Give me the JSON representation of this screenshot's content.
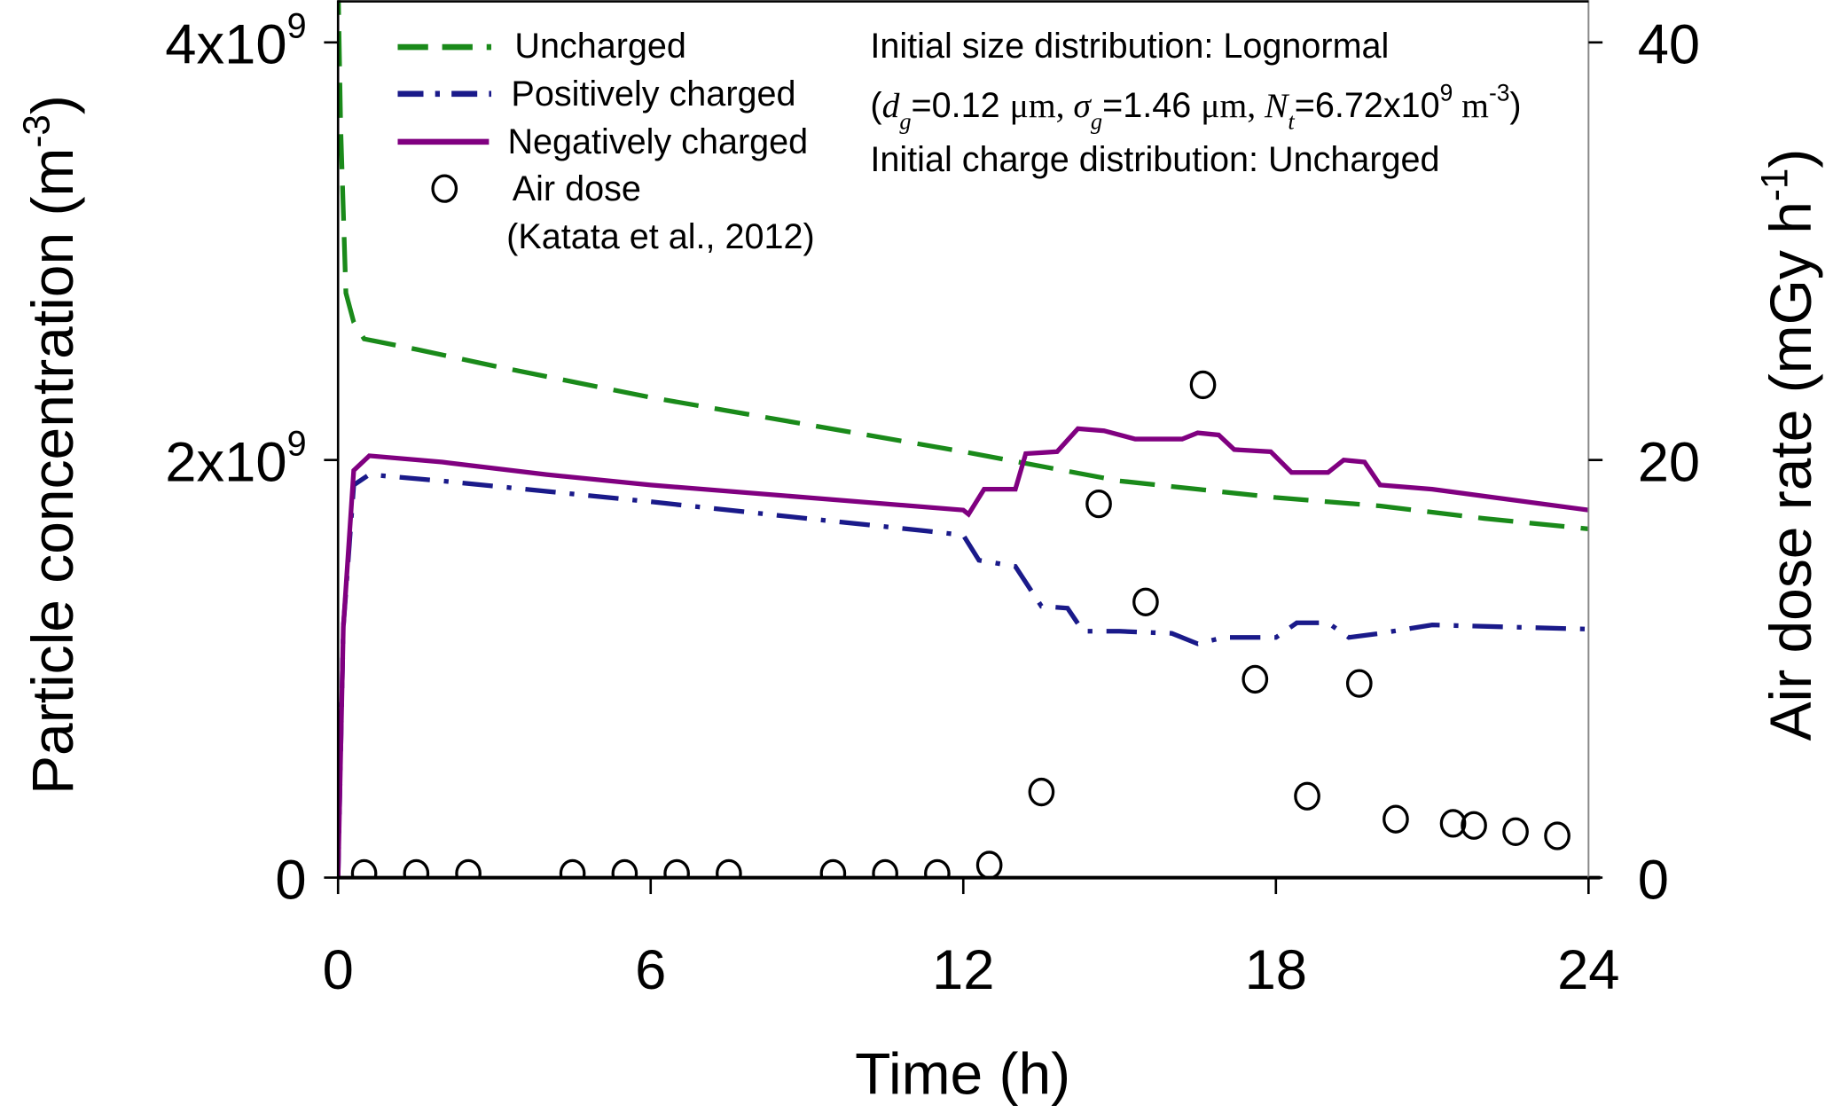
{
  "chart_data": {
    "type": "line",
    "xlabel": "Time (h)",
    "ylabel_left": "Particle concentration (m",
    "ylabel_left_sup": "-3",
    "ylabel_left_end": ")",
    "ylabel_right": "Air dose rate (mGy h",
    "ylabel_right_sup": "-1",
    "ylabel_right_end": ")",
    "xlim": [
      0,
      24
    ],
    "ylim_left": [
      0,
      4000000000.0
    ],
    "ylim_right": [
      0,
      40
    ],
    "x_ticks": [
      0,
      6,
      12,
      18,
      24
    ],
    "x_tick_labels": [
      "0",
      "6",
      "12",
      "18",
      "24"
    ],
    "y_left_ticks": [
      {
        "value": 0,
        "base": "0",
        "exp": ""
      },
      {
        "value": 2000000000.0,
        "base": "2x10",
        "exp": "9"
      },
      {
        "value": 4000000000.0,
        "base": "4x10",
        "exp": "9"
      }
    ],
    "y_right_ticks": [
      {
        "value": 0,
        "label": "0"
      },
      {
        "value": 20,
        "label": "20"
      },
      {
        "value": 40,
        "label": "40"
      }
    ],
    "legend_position": "top-left",
    "series": [
      {
        "name": "Uncharged",
        "color": "#1a8a1a",
        "style": "dash",
        "axis": "left",
        "x": [
          0,
          0.05,
          0.15,
          0.3,
          0.5,
          1.5,
          3,
          6,
          9,
          12,
          13.5,
          15,
          16.5,
          18,
          20,
          22,
          24
        ],
        "y": [
          4300000000.0,
          3600000000.0,
          2800000000.0,
          2660000000.0,
          2580000000.0,
          2530000000.0,
          2450000000.0,
          2300000000.0,
          2170000000.0,
          2040000000.0,
          1970000000.0,
          1900000000.0,
          1860000000.0,
          1820000000.0,
          1780000000.0,
          1720000000.0,
          1670000000.0
        ]
      },
      {
        "name": "Positively charged",
        "color": "#1a1a8a",
        "style": "dashdot",
        "axis": "left",
        "x": [
          0,
          0.1,
          0.3,
          0.6,
          2,
          4,
          6,
          9,
          11.3,
          12,
          12.3,
          13,
          13.5,
          14,
          14.3,
          15,
          16,
          16.5,
          17,
          18,
          18.4,
          19,
          19.4,
          20,
          21,
          24
        ],
        "y": [
          0,
          1200000000.0,
          1880000000.0,
          1930000000.0,
          1900000000.0,
          1850000000.0,
          1800000000.0,
          1720000000.0,
          1660000000.0,
          1640000000.0,
          1520000000.0,
          1490000000.0,
          1300000000.0,
          1290000000.0,
          1180000000.0,
          1180000000.0,
          1170000000.0,
          1120000000.0,
          1150000000.0,
          1150000000.0,
          1220000000.0,
          1220000000.0,
          1150000000.0,
          1170000000.0,
          1210000000.0,
          1190000000.0
        ]
      },
      {
        "name": "Negatively charged",
        "color": "#800080",
        "style": "solid",
        "axis": "left",
        "x": [
          0,
          0.1,
          0.3,
          0.6,
          2,
          4,
          6,
          9,
          12,
          12.1,
          12.4,
          13,
          13.2,
          13.8,
          14.2,
          14.7,
          15.3,
          16.2,
          16.5,
          16.9,
          17.2,
          17.9,
          18.3,
          19,
          19.3,
          19.7,
          20,
          21,
          24
        ],
        "y": [
          0,
          1200000000.0,
          1950000000.0,
          2020000000.0,
          1990000000.0,
          1930000000.0,
          1880000000.0,
          1820000000.0,
          1760000000.0,
          1740000000.0,
          1860000000.0,
          1860000000.0,
          2030000000.0,
          2040000000.0,
          2150000000.0,
          2140000000.0,
          2100000000.0,
          2100000000.0,
          2130000000.0,
          2120000000.0,
          2050000000.0,
          2040000000.0,
          1940000000.0,
          1940000000.0,
          2000000000.0,
          1990000000.0,
          1880000000.0,
          1860000000.0,
          1760000000.0
        ]
      },
      {
        "name": "Air dose",
        "color": "#000000",
        "style": "open-circle",
        "axis": "right",
        "x": [
          0.5,
          1.5,
          2.5,
          4.5,
          5.5,
          6.5,
          7.5,
          9.5,
          10.5,
          11.5,
          12.5,
          13.5,
          14.6,
          15.5,
          16.6,
          17.6,
          18.6,
          19.6,
          20.3,
          21.4,
          21.8,
          22.6,
          23.4
        ],
        "y": [
          0.2,
          0.2,
          0.2,
          0.2,
          0.2,
          0.2,
          0.2,
          0.2,
          0.2,
          0.2,
          0.6,
          4.1,
          17.9,
          13.2,
          23.6,
          9.5,
          3.9,
          9.3,
          2.8,
          2.6,
          2.5,
          2.2,
          2.0
        ]
      }
    ],
    "legend_note": "(Katata et al., 2012)",
    "annotation": {
      "line1": "Initial size distribution: Lognormal",
      "line2_parts": [
        "(",
        "d",
        "g",
        "=0.12 ",
        "μm, ",
        "σ",
        "g",
        "=1.46 ",
        "μm, ",
        "N",
        "t",
        "=6.72x10",
        "9",
        " m",
        "-3",
        ")"
      ],
      "line3": "Initial charge distribution: Uncharged"
    }
  }
}
